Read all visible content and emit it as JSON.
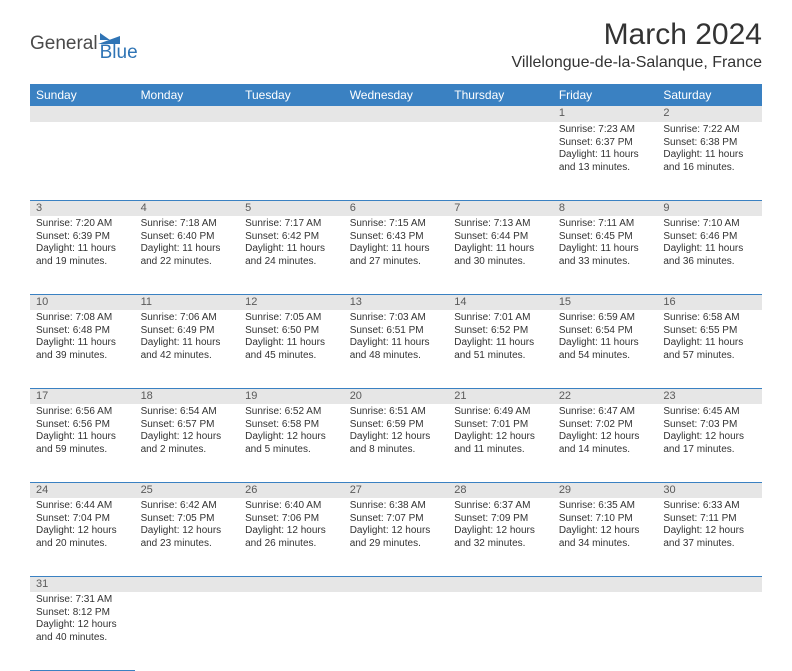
{
  "logo": {
    "part1": "General",
    "part2": "Blue"
  },
  "title": "March 2024",
  "location": "Villelongue-de-la-Salanque, France",
  "colors": {
    "header_bg": "#3a81c2",
    "header_fg": "#ffffff",
    "daynum_bg": "#e6e6e6",
    "row_border": "#3a81c2",
    "logo_blue": "#2f74b5",
    "logo_gray": "#4a4a4a"
  },
  "weekdays": [
    "Sunday",
    "Monday",
    "Tuesday",
    "Wednesday",
    "Thursday",
    "Friday",
    "Saturday"
  ],
  "weeks": [
    {
      "nums": [
        "",
        "",
        "",
        "",
        "",
        "1",
        "2"
      ],
      "cells": [
        null,
        null,
        null,
        null,
        null,
        {
          "sunrise": "Sunrise: 7:23 AM",
          "sunset": "Sunset: 6:37 PM",
          "daylight": "Daylight: 11 hours and 13 minutes."
        },
        {
          "sunrise": "Sunrise: 7:22 AM",
          "sunset": "Sunset: 6:38 PM",
          "daylight": "Daylight: 11 hours and 16 minutes."
        }
      ]
    },
    {
      "nums": [
        "3",
        "4",
        "5",
        "6",
        "7",
        "8",
        "9"
      ],
      "cells": [
        {
          "sunrise": "Sunrise: 7:20 AM",
          "sunset": "Sunset: 6:39 PM",
          "daylight": "Daylight: 11 hours and 19 minutes."
        },
        {
          "sunrise": "Sunrise: 7:18 AM",
          "sunset": "Sunset: 6:40 PM",
          "daylight": "Daylight: 11 hours and 22 minutes."
        },
        {
          "sunrise": "Sunrise: 7:17 AM",
          "sunset": "Sunset: 6:42 PM",
          "daylight": "Daylight: 11 hours and 24 minutes."
        },
        {
          "sunrise": "Sunrise: 7:15 AM",
          "sunset": "Sunset: 6:43 PM",
          "daylight": "Daylight: 11 hours and 27 minutes."
        },
        {
          "sunrise": "Sunrise: 7:13 AM",
          "sunset": "Sunset: 6:44 PM",
          "daylight": "Daylight: 11 hours and 30 minutes."
        },
        {
          "sunrise": "Sunrise: 7:11 AM",
          "sunset": "Sunset: 6:45 PM",
          "daylight": "Daylight: 11 hours and 33 minutes."
        },
        {
          "sunrise": "Sunrise: 7:10 AM",
          "sunset": "Sunset: 6:46 PM",
          "daylight": "Daylight: 11 hours and 36 minutes."
        }
      ]
    },
    {
      "nums": [
        "10",
        "11",
        "12",
        "13",
        "14",
        "15",
        "16"
      ],
      "cells": [
        {
          "sunrise": "Sunrise: 7:08 AM",
          "sunset": "Sunset: 6:48 PM",
          "daylight": "Daylight: 11 hours and 39 minutes."
        },
        {
          "sunrise": "Sunrise: 7:06 AM",
          "sunset": "Sunset: 6:49 PM",
          "daylight": "Daylight: 11 hours and 42 minutes."
        },
        {
          "sunrise": "Sunrise: 7:05 AM",
          "sunset": "Sunset: 6:50 PM",
          "daylight": "Daylight: 11 hours and 45 minutes."
        },
        {
          "sunrise": "Sunrise: 7:03 AM",
          "sunset": "Sunset: 6:51 PM",
          "daylight": "Daylight: 11 hours and 48 minutes."
        },
        {
          "sunrise": "Sunrise: 7:01 AM",
          "sunset": "Sunset: 6:52 PM",
          "daylight": "Daylight: 11 hours and 51 minutes."
        },
        {
          "sunrise": "Sunrise: 6:59 AM",
          "sunset": "Sunset: 6:54 PM",
          "daylight": "Daylight: 11 hours and 54 minutes."
        },
        {
          "sunrise": "Sunrise: 6:58 AM",
          "sunset": "Sunset: 6:55 PM",
          "daylight": "Daylight: 11 hours and 57 minutes."
        }
      ]
    },
    {
      "nums": [
        "17",
        "18",
        "19",
        "20",
        "21",
        "22",
        "23"
      ],
      "cells": [
        {
          "sunrise": "Sunrise: 6:56 AM",
          "sunset": "Sunset: 6:56 PM",
          "daylight": "Daylight: 11 hours and 59 minutes."
        },
        {
          "sunrise": "Sunrise: 6:54 AM",
          "sunset": "Sunset: 6:57 PM",
          "daylight": "Daylight: 12 hours and 2 minutes."
        },
        {
          "sunrise": "Sunrise: 6:52 AM",
          "sunset": "Sunset: 6:58 PM",
          "daylight": "Daylight: 12 hours and 5 minutes."
        },
        {
          "sunrise": "Sunrise: 6:51 AM",
          "sunset": "Sunset: 6:59 PM",
          "daylight": "Daylight: 12 hours and 8 minutes."
        },
        {
          "sunrise": "Sunrise: 6:49 AM",
          "sunset": "Sunset: 7:01 PM",
          "daylight": "Daylight: 12 hours and 11 minutes."
        },
        {
          "sunrise": "Sunrise: 6:47 AM",
          "sunset": "Sunset: 7:02 PM",
          "daylight": "Daylight: 12 hours and 14 minutes."
        },
        {
          "sunrise": "Sunrise: 6:45 AM",
          "sunset": "Sunset: 7:03 PM",
          "daylight": "Daylight: 12 hours and 17 minutes."
        }
      ]
    },
    {
      "nums": [
        "24",
        "25",
        "26",
        "27",
        "28",
        "29",
        "30"
      ],
      "cells": [
        {
          "sunrise": "Sunrise: 6:44 AM",
          "sunset": "Sunset: 7:04 PM",
          "daylight": "Daylight: 12 hours and 20 minutes."
        },
        {
          "sunrise": "Sunrise: 6:42 AM",
          "sunset": "Sunset: 7:05 PM",
          "daylight": "Daylight: 12 hours and 23 minutes."
        },
        {
          "sunrise": "Sunrise: 6:40 AM",
          "sunset": "Sunset: 7:06 PM",
          "daylight": "Daylight: 12 hours and 26 minutes."
        },
        {
          "sunrise": "Sunrise: 6:38 AM",
          "sunset": "Sunset: 7:07 PM",
          "daylight": "Daylight: 12 hours and 29 minutes."
        },
        {
          "sunrise": "Sunrise: 6:37 AM",
          "sunset": "Sunset: 7:09 PM",
          "daylight": "Daylight: 12 hours and 32 minutes."
        },
        {
          "sunrise": "Sunrise: 6:35 AM",
          "sunset": "Sunset: 7:10 PM",
          "daylight": "Daylight: 12 hours and 34 minutes."
        },
        {
          "sunrise": "Sunrise: 6:33 AM",
          "sunset": "Sunset: 7:11 PM",
          "daylight": "Daylight: 12 hours and 37 minutes."
        }
      ]
    },
    {
      "nums": [
        "31",
        "",
        "",
        "",
        "",
        "",
        ""
      ],
      "cells": [
        {
          "sunrise": "Sunrise: 7:31 AM",
          "sunset": "Sunset: 8:12 PM",
          "daylight": "Daylight: 12 hours and 40 minutes."
        },
        null,
        null,
        null,
        null,
        null,
        null
      ]
    }
  ]
}
